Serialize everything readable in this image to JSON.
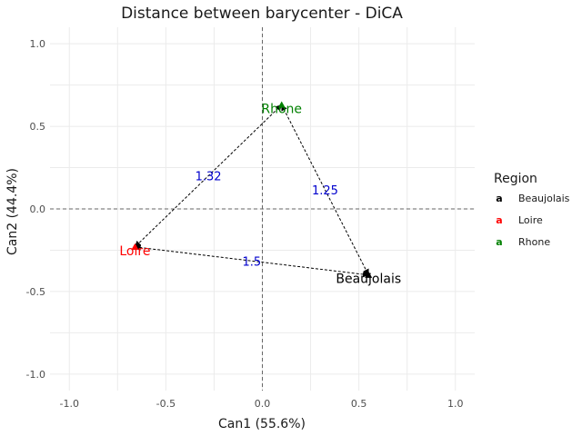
{
  "chart_data": {
    "type": "scatter",
    "title": "Distance between barycenter - DiCA",
    "xlabel": "Can1 (55.6%)",
    "ylabel": "Can2 (44.4%)",
    "xlim": [
      -1.1,
      1.1
    ],
    "ylim": [
      -1.1,
      1.1
    ],
    "x_ticks": [
      -1.0,
      -0.5,
      0.0,
      0.5,
      1.0
    ],
    "y_ticks": [
      -1.0,
      -0.5,
      0.0,
      0.5,
      1.0
    ],
    "x_tick_labels": [
      "-1.0",
      "-0.5",
      "0.0",
      "0.5",
      "1.0"
    ],
    "y_tick_labels": [
      "-1.0",
      "-0.5",
      "0.0",
      "0.5",
      "1.0"
    ],
    "grid": true,
    "zero_lines": true,
    "points": [
      {
        "name": "Beaujolais",
        "x": 0.55,
        "y": -0.4,
        "color": "#000000"
      },
      {
        "name": "Loire",
        "x": -0.66,
        "y": -0.23,
        "color": "#ff0000"
      },
      {
        "name": "Rhone",
        "x": 0.1,
        "y": 0.63,
        "color": "#008000"
      }
    ],
    "distances": [
      {
        "from": "Rhone",
        "to": "Loire",
        "label": "1.32"
      },
      {
        "from": "Rhone",
        "to": "Beaujolais",
        "label": "1.25"
      },
      {
        "from": "Loire",
        "to": "Beaujolais",
        "label": "1.5"
      }
    ],
    "distance_label_color": "#0000cd",
    "legend": {
      "title": "Region",
      "position": "right",
      "key_glyph": "a",
      "entries": [
        {
          "label": "Beaujolais",
          "color": "#000000"
        },
        {
          "label": "Loire",
          "color": "#ff0000"
        },
        {
          "label": "Rhone",
          "color": "#008000"
        }
      ]
    }
  }
}
